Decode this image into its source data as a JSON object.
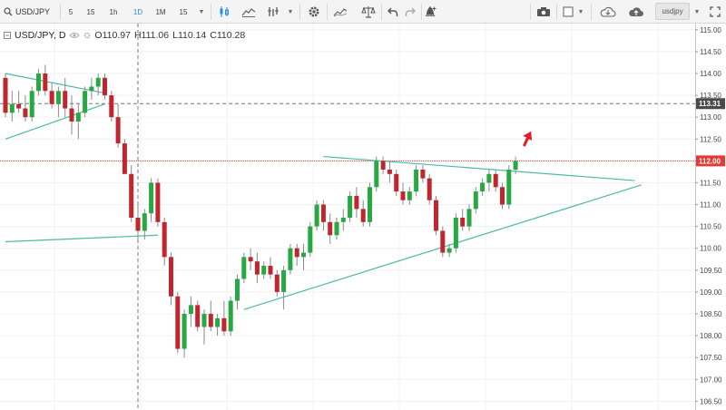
{
  "toolbar": {
    "symbol": "USD/JPY",
    "intervals": [
      "5",
      "15",
      "1h",
      "1D",
      "1M",
      "15"
    ],
    "active_interval": "1D",
    "search_value": "usdjpy",
    "icons": [
      "candles-icon",
      "line-chart-icon",
      "indicators-icon",
      "settings-icon",
      "compare-icon",
      "scales-icon",
      "undo-icon",
      "redo-icon",
      "alert-icon",
      "camera-icon",
      "template-icon",
      "cloud-download-icon",
      "cloud-upload-icon",
      "fullscreen-icon"
    ]
  },
  "legend": {
    "symbol": "USD/JPY, D",
    "open_label": "O",
    "open": "110.97",
    "high_label": "H",
    "high": "111.06",
    "low_label": "L",
    "low": "110.14",
    "close_label": "C",
    "close": "110.28"
  },
  "colors": {
    "up": "#26a843",
    "down": "#c0262d",
    "trendline": "#4cb9a4",
    "grid": "#f0f0f0",
    "current_price": "#e53935",
    "crosshair": "#777777"
  },
  "chart_data": {
    "type": "candlestick",
    "symbol": "USD/JPY",
    "interval": "D",
    "ylim": [
      106.3,
      115.1
    ],
    "y_ticks": [
      "115.00",
      "114.50",
      "114.00",
      "113.50",
      "113.00",
      "112.50",
      "112.00",
      "111.50",
      "111.00",
      "110.50",
      "110.00",
      "109.50",
      "109.00",
      "108.50",
      "108.00",
      "107.50",
      "107.00",
      "106.50"
    ],
    "current_price": "112.00",
    "crosshair_price": "113.31",
    "candles": [
      [
        113.9,
        114.0,
        113.0,
        113.1
      ],
      [
        113.1,
        113.6,
        112.9,
        113.3
      ],
      [
        113.3,
        113.6,
        113.1,
        113.2
      ],
      [
        113.2,
        113.5,
        112.9,
        113.0
      ],
      [
        113.0,
        113.7,
        112.9,
        113.6
      ],
      [
        113.6,
        114.1,
        113.5,
        114.0
      ],
      [
        114.0,
        114.2,
        113.5,
        113.6
      ],
      [
        113.6,
        113.8,
        113.2,
        113.3
      ],
      [
        113.3,
        113.7,
        113.0,
        113.6
      ],
      [
        113.6,
        113.9,
        113.0,
        113.2
      ],
      [
        113.2,
        113.5,
        112.6,
        112.9
      ],
      [
        112.9,
        113.3,
        112.5,
        113.1
      ],
      [
        113.1,
        113.7,
        113.0,
        113.6
      ],
      [
        113.6,
        113.9,
        113.4,
        113.7
      ],
      [
        113.7,
        114.0,
        113.5,
        113.9
      ],
      [
        113.9,
        114.0,
        113.4,
        113.5
      ],
      [
        113.5,
        113.6,
        112.9,
        113.0
      ],
      [
        113.0,
        113.3,
        112.3,
        112.4
      ],
      [
        112.4,
        112.5,
        111.7,
        111.7
      ],
      [
        111.7,
        111.9,
        110.6,
        110.7
      ],
      [
        110.7,
        111.0,
        110.2,
        110.4
      ],
      [
        110.4,
        110.9,
        110.2,
        110.8
      ],
      [
        110.8,
        111.6,
        110.6,
        111.5
      ],
      [
        111.5,
        111.6,
        110.5,
        110.6
      ],
      [
        110.6,
        110.7,
        109.6,
        109.8
      ],
      [
        109.8,
        109.9,
        108.7,
        108.9
      ],
      [
        108.9,
        109.0,
        107.6,
        107.7
      ],
      [
        107.7,
        108.6,
        107.5,
        108.5
      ],
      [
        108.5,
        108.9,
        108.2,
        108.7
      ],
      [
        108.7,
        108.8,
        108.1,
        108.2
      ],
      [
        108.2,
        108.6,
        107.8,
        108.5
      ],
      [
        108.5,
        108.8,
        108.1,
        108.2
      ],
      [
        108.2,
        108.5,
        108.0,
        108.4
      ],
      [
        108.4,
        108.8,
        108.0,
        108.1
      ],
      [
        108.1,
        108.9,
        108.0,
        108.8
      ],
      [
        108.8,
        109.4,
        108.6,
        109.3
      ],
      [
        109.3,
        109.9,
        109.2,
        109.8
      ],
      [
        109.8,
        110.0,
        109.5,
        109.7
      ],
      [
        109.7,
        109.9,
        109.2,
        109.4
      ],
      [
        109.4,
        109.7,
        109.3,
        109.6
      ],
      [
        109.6,
        109.8,
        109.3,
        109.4
      ],
      [
        109.4,
        109.5,
        108.9,
        109.0
      ],
      [
        109.0,
        109.6,
        108.6,
        109.5
      ],
      [
        109.5,
        110.1,
        109.4,
        110.0
      ],
      [
        110.0,
        110.1,
        109.6,
        109.8
      ],
      [
        109.8,
        110.1,
        109.5,
        109.9
      ],
      [
        109.9,
        110.6,
        109.8,
        110.5
      ],
      [
        110.5,
        111.1,
        110.4,
        111.0
      ],
      [
        111.0,
        111.1,
        110.4,
        110.6
      ],
      [
        110.6,
        110.8,
        110.1,
        110.3
      ],
      [
        110.3,
        110.7,
        110.2,
        110.6
      ],
      [
        110.6,
        110.9,
        110.4,
        110.7
      ],
      [
        110.7,
        111.3,
        110.6,
        111.2
      ],
      [
        111.2,
        111.4,
        110.7,
        110.9
      ],
      [
        110.9,
        111.1,
        110.5,
        110.6
      ],
      [
        110.6,
        111.5,
        110.5,
        111.4
      ],
      [
        111.4,
        112.1,
        111.3,
        112.0
      ],
      [
        112.0,
        112.1,
        111.7,
        111.8
      ],
      [
        111.8,
        112.0,
        111.5,
        111.7
      ],
      [
        111.7,
        111.8,
        111.2,
        111.3
      ],
      [
        111.3,
        111.5,
        111.0,
        111.1
      ],
      [
        111.1,
        111.4,
        111.0,
        111.3
      ],
      [
        111.3,
        111.9,
        111.2,
        111.8
      ],
      [
        111.8,
        111.9,
        111.5,
        111.6
      ],
      [
        111.6,
        111.7,
        111.0,
        111.1
      ],
      [
        111.1,
        111.2,
        110.3,
        110.4
      ],
      [
        110.4,
        110.5,
        109.8,
        109.9
      ],
      [
        109.9,
        110.1,
        109.8,
        110.0
      ],
      [
        110.0,
        110.8,
        109.9,
        110.7
      ],
      [
        110.7,
        110.9,
        110.4,
        110.5
      ],
      [
        110.5,
        111.0,
        110.4,
        110.9
      ],
      [
        110.9,
        111.4,
        110.8,
        111.3
      ],
      [
        111.3,
        111.6,
        111.2,
        111.5
      ],
      [
        111.5,
        111.8,
        111.3,
        111.7
      ],
      [
        111.7,
        111.8,
        111.3,
        111.4
      ],
      [
        111.4,
        111.5,
        110.9,
        111.0
      ],
      [
        111.0,
        111.9,
        110.9,
        111.8
      ],
      [
        111.8,
        112.1,
        111.7,
        112.0
      ]
    ],
    "trendlines": [
      {
        "from": [
          0,
          114.0
        ],
        "to": [
          15,
          113.55
        ]
      },
      {
        "from": [
          0,
          112.5
        ],
        "to": [
          15,
          113.3
        ]
      },
      {
        "from": [
          0,
          110.15
        ],
        "to": [
          23,
          110.3
        ]
      },
      {
        "from": [
          48,
          112.1
        ],
        "to": [
          95,
          111.55
        ]
      },
      {
        "from": [
          36,
          108.6
        ],
        "to": [
          96,
          111.45
        ]
      }
    ]
  }
}
